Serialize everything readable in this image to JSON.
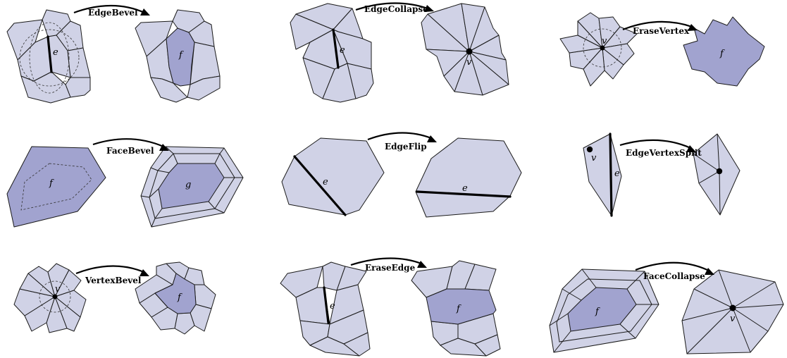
{
  "operations": [
    {
      "name": "EdgeBevel",
      "marks": [
        "e",
        "f"
      ]
    },
    {
      "name": "EdgeCollapse",
      "marks": [
        "e",
        "v"
      ]
    },
    {
      "name": "EraseVertex",
      "marks": [
        "v",
        "f"
      ]
    },
    {
      "name": "FaceBevel",
      "marks": [
        "f",
        "g"
      ]
    },
    {
      "name": "EdgeFlip",
      "marks": [
        "e",
        "e"
      ]
    },
    {
      "name": "EdgeVertexSplit",
      "marks": [
        "v",
        "e"
      ]
    },
    {
      "name": "VertexBevel",
      "marks": [
        "v",
        "f"
      ]
    },
    {
      "name": "EraseEdge",
      "marks": [
        "e",
        "f"
      ]
    },
    {
      "name": "FaceCollapse",
      "marks": [
        "f",
        "v"
      ]
    }
  ],
  "colors": {
    "face_fill": "#d0d2e6",
    "highlight_fill": "#a1a3cf",
    "stroke": "#1a1a1a"
  }
}
